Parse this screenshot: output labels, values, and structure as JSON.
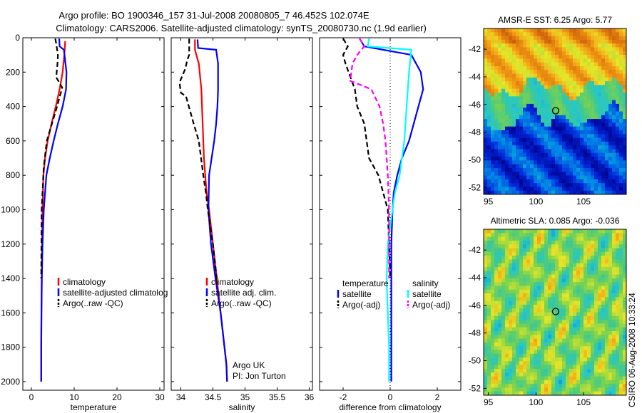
{
  "title_line1": "Argo profile: BO 1900346_157 31-Jul-2008 20080805_7 46.452S 102.074E",
  "title_line2": "Climatology: CARS2006. Satellite-adjusted climatology: synTS_20080730.nc (1.9d earlier)",
  "credit": "CSIRO 06-Aug-2008 10:33:24",
  "argo_note": [
    "Argo UK",
    "PI: Jon Turton"
  ],
  "colors": {
    "climatology": "#ff0000",
    "satellite": "#0000ff",
    "argo": "#000000",
    "sat_salinity": "#00ffff",
    "argo_salinity_diff": "#ff00ff",
    "marker": "#000000"
  },
  "chart_data": [
    {
      "type": "line",
      "xlabel": "temperature",
      "ylabel": "",
      "xlim": [
        -2,
        31
      ],
      "ylim": [
        2050,
        0
      ],
      "xticks": [
        0,
        10,
        20,
        30
      ],
      "yticks": [
        0,
        200,
        400,
        600,
        800,
        1000,
        1200,
        1400,
        1600,
        1800,
        2000
      ],
      "legend": [
        "climatology",
        "satellite-adjusted climatolog",
        "Argo(..raw -QC)"
      ],
      "series": [
        {
          "name": "climatology",
          "style": "solid",
          "color_key": "climatology",
          "x": [
            7.9,
            7.7,
            7.3,
            6.6,
            5.7,
            4.7,
            3.8,
            3.2,
            2.8,
            2.6,
            2.5,
            2.4,
            2.35,
            2.3,
            2.3
          ],
          "y": [
            20,
            100,
            200,
            300,
            400,
            500,
            600,
            700,
            800,
            1000,
            1200,
            1400,
            1600,
            1800,
            2000
          ]
        },
        {
          "name": "satellite-adjusted climatolog",
          "style": "solid",
          "color_key": "satellite",
          "x": [
            6.5,
            6.6,
            7.6,
            8.2,
            8.1,
            7.3,
            6.2,
            5.2,
            4.3,
            3.5,
            2.9,
            2.6,
            2.45,
            2.35,
            2.3,
            2.3
          ],
          "y": [
            5,
            50,
            70,
            200,
            300,
            400,
            500,
            600,
            700,
            800,
            1000,
            1200,
            1400,
            1600,
            1800,
            2000
          ]
        },
        {
          "name": "Argo(..raw -QC)",
          "style": "dashed",
          "color_key": "argo",
          "x": [
            5.6,
            5.9,
            6.2,
            6.1,
            5.8,
            7.2,
            6.0,
            4.8,
            3.6,
            2.9,
            2.6,
            2.4,
            2.35,
            2.3
          ],
          "y": [
            5,
            50,
            100,
            150,
            230,
            290,
            400,
            500,
            600,
            750,
            900,
            1000,
            1200,
            1400
          ]
        }
      ]
    },
    {
      "type": "line",
      "xlabel": "salinity",
      "ylabel": "",
      "xlim": [
        33.85,
        36.05
      ],
      "ylim": [
        2050,
        0
      ],
      "xticks": [
        34,
        34.5,
        35,
        35.5,
        36
      ],
      "xtick_labels": [
        "34",
        "34.5",
        "35",
        "35.5",
        "36"
      ],
      "yticks": [
        0,
        200,
        400,
        600,
        800,
        1000,
        1200,
        1400,
        1600,
        1800,
        2000
      ],
      "legend": [
        "climatology",
        "satellite adj. clim.",
        "Argo(..raw -QC)"
      ],
      "series": [
        {
          "name": "climatology",
          "style": "solid",
          "color_key": "climatology",
          "x": [
            34.22,
            34.22,
            34.28,
            34.32,
            34.33,
            34.34,
            34.35,
            34.36,
            34.38,
            34.4,
            34.44,
            34.5,
            34.56,
            34.62,
            34.68,
            34.71,
            34.72
          ],
          "y": [
            10,
            70,
            150,
            300,
            400,
            500,
            600,
            700,
            800,
            900,
            1000,
            1200,
            1400,
            1600,
            1800,
            1900,
            2000
          ]
        },
        {
          "name": "satellite adj. clim.",
          "style": "solid",
          "color_key": "satellite",
          "x": [
            34.26,
            34.27,
            34.55,
            34.58,
            34.58,
            34.57,
            34.55,
            34.52,
            34.48,
            34.44,
            34.43,
            34.47,
            34.54,
            34.62,
            34.68,
            34.71,
            34.72
          ],
          "y": [
            10,
            60,
            70,
            150,
            300,
            400,
            500,
            600,
            700,
            800,
            1000,
            1200,
            1400,
            1600,
            1800,
            1900,
            2000
          ]
        },
        {
          "name": "Argo(..raw -QC)",
          "style": "dashed",
          "color_key": "argo",
          "x": [
            34.13,
            34.13,
            34.1,
            34.07,
            33.98,
            34.0,
            34.08,
            34.2,
            34.28,
            34.35,
            34.39,
            34.42,
            34.5,
            34.56
          ],
          "y": [
            5,
            100,
            130,
            180,
            260,
            320,
            340,
            500,
            600,
            800,
            900,
            1000,
            1200,
            1400
          ]
        }
      ]
    },
    {
      "type": "line",
      "xlabel": "difference from climatology",
      "ylabel": "",
      "xlim": [
        -3,
        3
      ],
      "ylim": [
        2050,
        0
      ],
      "xticks": [
        -2,
        0,
        2
      ],
      "yticks": [
        0,
        200,
        400,
        600,
        800,
        1000,
        1200,
        1400,
        1600,
        1800,
        2000
      ],
      "legend_groups": [
        {
          "header": "temperature",
          "items": [
            "satellite",
            "Argo(-adj)"
          ]
        },
        {
          "header": "salinity",
          "items": [
            "satellite",
            "Argo(-adj)"
          ]
        }
      ],
      "series": [
        {
          "name": "satellite",
          "group": "temperature",
          "style": "solid",
          "color_key": "satellite",
          "x": [
            -1.3,
            -1.1,
            0.9,
            1.3,
            1.4,
            1.2,
            1.0,
            0.8,
            0.5,
            0.3,
            0.15,
            0.1,
            0.05,
            0.05,
            0.05
          ],
          "y": [
            5,
            50,
            100,
            200,
            300,
            400,
            500,
            600,
            700,
            800,
            900,
            1000,
            1200,
            1600,
            2000
          ]
        },
        {
          "name": "Argo(-adj)",
          "group": "temperature",
          "style": "dashed",
          "color_key": "argo",
          "x": [
            -2.0,
            -1.8,
            -2.0,
            -1.9,
            -1.5,
            -1.4,
            -1.1,
            -1.0,
            -0.9,
            -0.5,
            -0.3,
            -0.1,
            0.0
          ],
          "y": [
            5,
            50,
            100,
            150,
            300,
            400,
            500,
            600,
            700,
            800,
            900,
            1000,
            1400
          ]
        },
        {
          "name": "satellite",
          "group": "salinity",
          "style": "solid",
          "color_key": "sat_salinity",
          "x": [
            -0.9,
            -0.95,
            0.9,
            0.8,
            0.7,
            0.6,
            0.4,
            0.2,
            0.1,
            0.0,
            -0.1,
            -0.15,
            -0.1,
            -0.05,
            -0.05
          ],
          "y": [
            5,
            50,
            70,
            200,
            400,
            600,
            800,
            900,
            1000,
            1100,
            1200,
            1400,
            1600,
            1800,
            2000
          ]
        },
        {
          "name": "Argo(-adj)",
          "group": "salinity",
          "style": "dashed",
          "color_key": "argo_salinity_diff",
          "x": [
            -1.3,
            -1.1,
            -1.4,
            -1.6,
            -1.7,
            -0.8,
            -0.45,
            -0.3,
            -0.2,
            -0.15,
            -0.1,
            -0.05,
            -0.05
          ],
          "y": [
            5,
            50,
            100,
            150,
            250,
            300,
            400,
            500,
            600,
            700,
            800,
            1000,
            1400
          ]
        }
      ]
    },
    {
      "type": "heatmap",
      "title": "AMSR-E SST: 6.25 Argo: 5.77",
      "xlim": [
        94.5,
        109.5
      ],
      "ylim": [
        -52.5,
        -40.5
      ],
      "xticks": [
        95,
        100,
        105
      ],
      "yticks": [
        -42,
        -44,
        -46,
        -48,
        -50,
        -52
      ],
      "field": "sst",
      "marker": {
        "lon": 102.07,
        "lat": -46.45
      }
    },
    {
      "type": "heatmap",
      "title": "Altimetric SLA: 0.085 Argo: -0.036",
      "xlim": [
        94.5,
        109.5
      ],
      "ylim": [
        -52.5,
        -40.5
      ],
      "xticks": [
        95,
        100,
        105
      ],
      "yticks": [
        -42,
        -44,
        -46,
        -48,
        -50,
        -52
      ],
      "field": "sla",
      "marker": {
        "lon": 102.07,
        "lat": -46.45
      }
    }
  ]
}
